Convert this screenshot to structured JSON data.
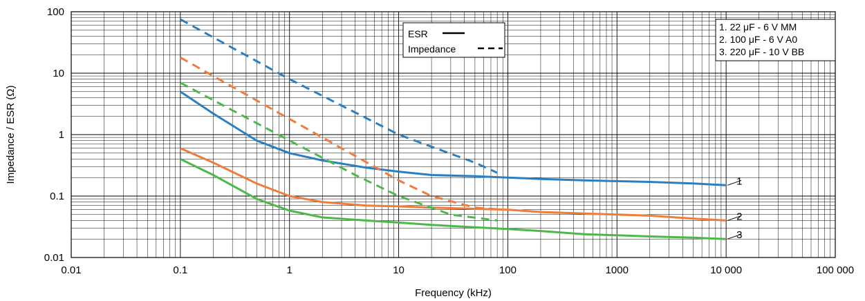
{
  "chart_data": {
    "type": "line",
    "title": "",
    "xlabel": "Frequency (kHz)",
    "ylabel": "Impedance / ESR (Ω)",
    "xscale": "log",
    "yscale": "log",
    "xlim": [
      0.01,
      100000
    ],
    "ylim": [
      0.01,
      100
    ],
    "grid": true,
    "x_tick_labels": [
      {
        "value": 0.01,
        "label": "0.01"
      },
      {
        "value": 0.1,
        "label": "0.1"
      },
      {
        "value": 1,
        "label": "1"
      },
      {
        "value": 10,
        "label": "10"
      },
      {
        "value": 100,
        "label": "100"
      },
      {
        "value": 1000,
        "label": "1000"
      },
      {
        "value": 10000,
        "label": "10 000"
      },
      {
        "value": 100000,
        "label": "100 000"
      }
    ],
    "y_tick_labels": [
      {
        "value": 0.01,
        "label": "0.01"
      },
      {
        "value": 0.1,
        "label": "0.1"
      },
      {
        "value": 1,
        "label": "1"
      },
      {
        "value": 10,
        "label": "10"
      },
      {
        "value": 100,
        "label": "100"
      }
    ],
    "style_legend": {
      "placement": "top-center",
      "entries": [
        {
          "label": "ESR",
          "style": "solid"
        },
        {
          "label": "Impedance",
          "style": "dashed"
        }
      ]
    },
    "capacitor_legend": {
      "placement": "top-right",
      "entries": [
        "1. 22 μF - 6 V MM",
        "2. 100 μF - 6 V A0",
        "3. 220 μF - 10 V BB"
      ]
    },
    "series": [
      {
        "curve": "1",
        "kind": "ESR",
        "color": "#2a7fc3",
        "style": "solid",
        "x": [
          0.1,
          0.2,
          0.5,
          1,
          2,
          5,
          10,
          20,
          50,
          100,
          200,
          500,
          1000,
          2000,
          5000,
          10000
        ],
        "y": [
          5,
          2.2,
          0.8,
          0.5,
          0.38,
          0.29,
          0.25,
          0.22,
          0.21,
          0.2,
          0.19,
          0.18,
          0.175,
          0.17,
          0.16,
          0.15
        ]
      },
      {
        "curve": "1",
        "kind": "Impedance",
        "color": "#2a7fc3",
        "style": "dashed",
        "x": [
          0.1,
          1,
          10,
          50,
          80
        ],
        "y": [
          75,
          8,
          1,
          0.35,
          0.24
        ]
      },
      {
        "curve": "2",
        "kind": "ESR",
        "color": "#f07c3b",
        "style": "solid",
        "x": [
          0.1,
          0.2,
          0.5,
          1,
          2,
          5,
          10,
          20,
          50,
          100,
          200,
          500,
          1000,
          2000,
          5000,
          10000
        ],
        "y": [
          0.6,
          0.35,
          0.16,
          0.1,
          0.08,
          0.07,
          0.068,
          0.065,
          0.062,
          0.06,
          0.055,
          0.052,
          0.05,
          0.048,
          0.043,
          0.04
        ]
      },
      {
        "curve": "2",
        "kind": "Impedance",
        "color": "#f07c3b",
        "style": "dashed",
        "x": [
          0.1,
          1,
          10,
          20,
          50,
          90
        ],
        "y": [
          18,
          1.8,
          0.18,
          0.1,
          0.065,
          0.06
        ]
      },
      {
        "curve": "3",
        "kind": "ESR",
        "color": "#4db84a",
        "style": "solid",
        "x": [
          0.1,
          0.2,
          0.5,
          1,
          2,
          5,
          10,
          20,
          50,
          100,
          200,
          500,
          1000,
          2000,
          5000,
          10000
        ],
        "y": [
          0.4,
          0.22,
          0.09,
          0.058,
          0.045,
          0.04,
          0.037,
          0.034,
          0.031,
          0.029,
          0.027,
          0.024,
          0.023,
          0.022,
          0.021,
          0.02
        ]
      },
      {
        "curve": "3",
        "kind": "Impedance",
        "color": "#4db84a",
        "style": "dashed",
        "x": [
          0.1,
          1,
          4,
          10,
          30,
          80
        ],
        "y": [
          7,
          0.8,
          0.22,
          0.1,
          0.05,
          0.04
        ]
      }
    ],
    "curve_labels": [
      {
        "text": "1",
        "y": 0.15
      },
      {
        "text": "2",
        "y": 0.04
      },
      {
        "text": "3",
        "y": 0.02
      }
    ]
  }
}
